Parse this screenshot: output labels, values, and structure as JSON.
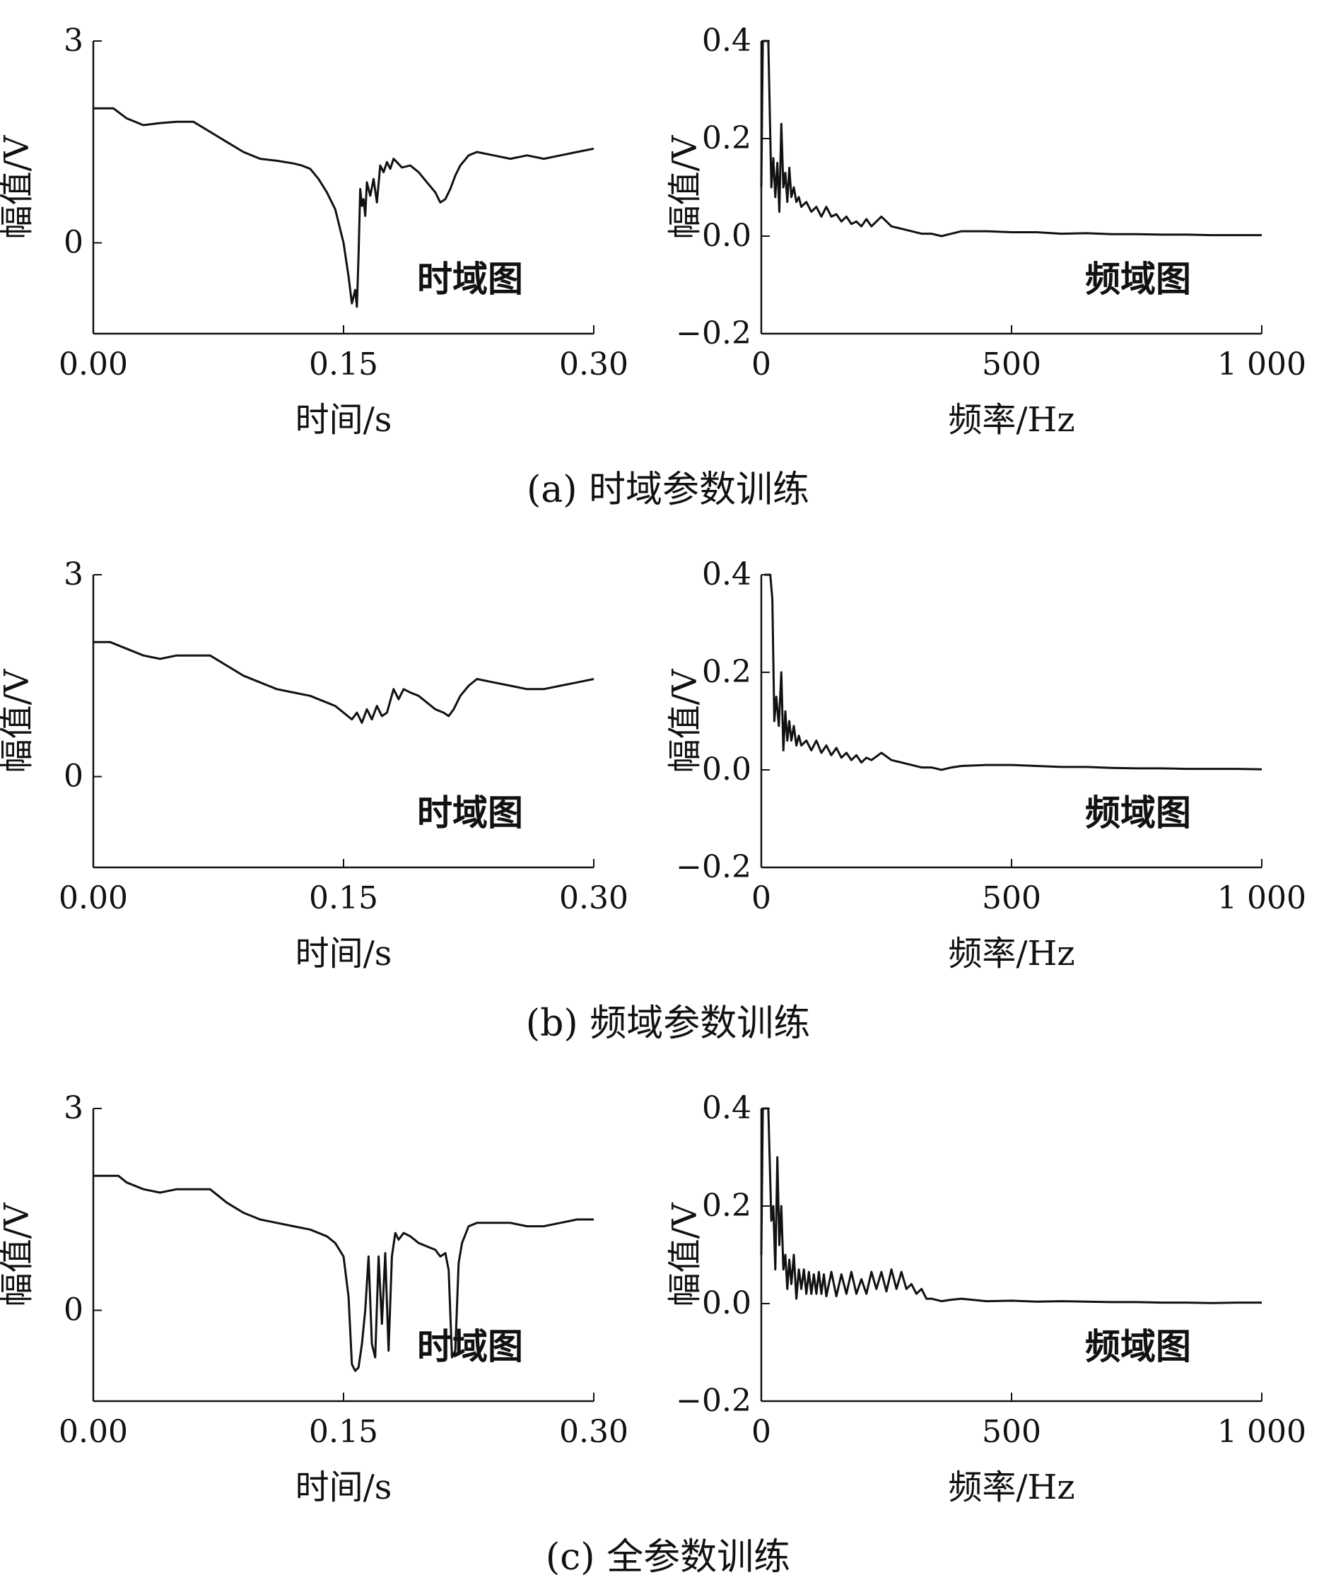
{
  "captions": [
    "(a) 时域参数训练",
    "(b) 频域参数训练",
    "(c) 全参数训练"
  ],
  "chart_data": [
    {
      "type": "line",
      "panel": "a-time",
      "xlabel": "时间/s",
      "ylabel": "幅值/V",
      "inset_label": "时域图",
      "xlim": [
        0,
        0.3
      ],
      "ylim": [
        -1.35,
        3.0
      ],
      "xticks": [
        0,
        0.15,
        0.3
      ],
      "xtick_labels": [
        "0.00",
        "0.15",
        "0.30"
      ],
      "yticks": [
        0,
        3
      ],
      "ytick_labels": [
        "0",
        "3"
      ],
      "series": [
        {
          "x": [
            0.0,
            0.012,
            0.02,
            0.03,
            0.04,
            0.05,
            0.06,
            0.07,
            0.08,
            0.09,
            0.1,
            0.11,
            0.12,
            0.125,
            0.13,
            0.135,
            0.14,
            0.145,
            0.15,
            0.153,
            0.155,
            0.157,
            0.158,
            0.159,
            0.16,
            0.161,
            0.162,
            0.163,
            0.164,
            0.166,
            0.168,
            0.17,
            0.172,
            0.174,
            0.176,
            0.178,
            0.18,
            0.185,
            0.19,
            0.195,
            0.2,
            0.205,
            0.208,
            0.211,
            0.214,
            0.217,
            0.22,
            0.225,
            0.23,
            0.24,
            0.25,
            0.26,
            0.27,
            0.28,
            0.29,
            0.3
          ],
          "y": [
            2.0,
            2.0,
            1.85,
            1.75,
            1.78,
            1.8,
            1.8,
            1.65,
            1.5,
            1.35,
            1.25,
            1.22,
            1.18,
            1.15,
            1.1,
            0.95,
            0.75,
            0.5,
            0.0,
            -0.5,
            -0.9,
            -0.7,
            -0.95,
            -0.2,
            0.8,
            0.55,
            0.65,
            0.4,
            0.9,
            0.7,
            0.95,
            0.6,
            1.15,
            1.05,
            1.2,
            1.1,
            1.25,
            1.12,
            1.15,
            1.05,
            0.9,
            0.75,
            0.6,
            0.65,
            0.8,
            1.0,
            1.15,
            1.3,
            1.35,
            1.3,
            1.25,
            1.3,
            1.25,
            1.3,
            1.35,
            1.4
          ]
        }
      ]
    },
    {
      "type": "line",
      "panel": "a-freq",
      "xlabel": "频率/Hz",
      "ylabel": "幅值/V",
      "inset_label": "频域图",
      "xlim": [
        0,
        1000
      ],
      "ylim": [
        -0.2,
        0.4
      ],
      "xticks": [
        0,
        500,
        1000
      ],
      "xtick_labels": [
        "0",
        "500",
        "1 000"
      ],
      "yticks": [
        -0.2,
        0.0,
        0.2,
        0.4
      ],
      "ytick_labels": [
        "−0.2",
        "0.0",
        "0.2",
        "0.4"
      ],
      "series": [
        {
          "x": [
            0,
            3,
            8,
            14,
            20,
            24,
            28,
            32,
            36,
            40,
            44,
            48,
            52,
            56,
            60,
            65,
            70,
            75,
            80,
            90,
            100,
            110,
            120,
            130,
            140,
            150,
            160,
            170,
            180,
            190,
            200,
            210,
            220,
            240,
            260,
            280,
            300,
            320,
            340,
            360,
            380,
            400,
            450,
            500,
            550,
            600,
            650,
            700,
            750,
            800,
            850,
            900,
            950,
            1000
          ],
          "y": [
            0.1,
            0.4,
            0.4,
            0.4,
            0.1,
            0.16,
            0.08,
            0.15,
            0.05,
            0.23,
            0.1,
            0.13,
            0.07,
            0.14,
            0.08,
            0.1,
            0.07,
            0.08,
            0.06,
            0.07,
            0.05,
            0.06,
            0.04,
            0.06,
            0.04,
            0.045,
            0.03,
            0.04,
            0.025,
            0.03,
            0.02,
            0.035,
            0.02,
            0.04,
            0.02,
            0.015,
            0.01,
            0.005,
            0.005,
            0.0,
            0.005,
            0.01,
            0.01,
            0.008,
            0.008,
            0.005,
            0.006,
            0.004,
            0.004,
            0.003,
            0.003,
            0.002,
            0.002,
            0.002
          ]
        }
      ]
    },
    {
      "type": "line",
      "panel": "b-time",
      "xlabel": "时间/s",
      "ylabel": "幅值/V",
      "inset_label": "时域图",
      "xlim": [
        0,
        0.3
      ],
      "ylim": [
        -1.35,
        3.0
      ],
      "xticks": [
        0,
        0.15,
        0.3
      ],
      "xtick_labels": [
        "0.00",
        "0.15",
        "0.30"
      ],
      "yticks": [
        0,
        3
      ],
      "ytick_labels": [
        "0",
        "3"
      ],
      "series": [
        {
          "x": [
            0.0,
            0.01,
            0.02,
            0.03,
            0.04,
            0.05,
            0.06,
            0.07,
            0.08,
            0.09,
            0.1,
            0.11,
            0.12,
            0.13,
            0.14,
            0.145,
            0.15,
            0.155,
            0.158,
            0.161,
            0.164,
            0.167,
            0.17,
            0.173,
            0.176,
            0.18,
            0.183,
            0.186,
            0.19,
            0.195,
            0.2,
            0.205,
            0.21,
            0.213,
            0.216,
            0.22,
            0.225,
            0.23,
            0.24,
            0.25,
            0.26,
            0.27,
            0.28,
            0.29,
            0.3
          ],
          "y": [
            2.0,
            2.0,
            1.9,
            1.8,
            1.75,
            1.8,
            1.8,
            1.8,
            1.65,
            1.5,
            1.4,
            1.3,
            1.25,
            1.2,
            1.1,
            1.05,
            0.95,
            0.85,
            0.95,
            0.8,
            1.0,
            0.85,
            1.05,
            0.9,
            0.95,
            1.3,
            1.15,
            1.3,
            1.25,
            1.2,
            1.1,
            1.0,
            0.95,
            0.9,
            1.0,
            1.2,
            1.35,
            1.45,
            1.4,
            1.35,
            1.3,
            1.3,
            1.35,
            1.4,
            1.45
          ]
        }
      ]
    },
    {
      "type": "line",
      "panel": "b-freq",
      "xlabel": "频率/Hz",
      "ylabel": "幅值/V",
      "inset_label": "频域图",
      "xlim": [
        0,
        1000
      ],
      "ylim": [
        -0.2,
        0.4
      ],
      "xticks": [
        0,
        500,
        1000
      ],
      "xtick_labels": [
        "0",
        "500",
        "1 000"
      ],
      "yticks": [
        -0.2,
        0.0,
        0.2,
        0.4
      ],
      "ytick_labels": [
        "−0.2",
        "0.0",
        "0.2",
        "0.4"
      ],
      "series": [
        {
          "x": [
            6,
            10,
            18,
            22,
            26,
            30,
            35,
            40,
            44,
            48,
            52,
            56,
            60,
            65,
            70,
            75,
            80,
            90,
            100,
            110,
            120,
            130,
            140,
            150,
            160,
            170,
            180,
            190,
            200,
            210,
            220,
            240,
            260,
            280,
            300,
            320,
            340,
            360,
            380,
            400,
            450,
            500,
            550,
            600,
            650,
            700,
            750,
            800,
            850,
            900,
            950,
            1000
          ],
          "y": [
            0.4,
            0.4,
            0.4,
            0.35,
            0.1,
            0.15,
            0.09,
            0.2,
            0.04,
            0.12,
            0.06,
            0.1,
            0.06,
            0.09,
            0.05,
            0.07,
            0.05,
            0.06,
            0.04,
            0.06,
            0.035,
            0.05,
            0.03,
            0.045,
            0.025,
            0.035,
            0.02,
            0.03,
            0.015,
            0.025,
            0.02,
            0.035,
            0.02,
            0.015,
            0.01,
            0.005,
            0.005,
            0.0,
            0.005,
            0.008,
            0.01,
            0.01,
            0.008,
            0.006,
            0.006,
            0.004,
            0.003,
            0.003,
            0.002,
            0.002,
            0.002,
            0.001
          ]
        }
      ]
    },
    {
      "type": "line",
      "panel": "c-time",
      "xlabel": "时间/s",
      "ylabel": "幅值/V",
      "inset_label": "时域图",
      "xlim": [
        0,
        0.3
      ],
      "ylim": [
        -1.35,
        3.0
      ],
      "xticks": [
        0,
        0.15,
        0.3
      ],
      "xtick_labels": [
        "0.00",
        "0.15",
        "0.30"
      ],
      "yticks": [
        0,
        3
      ],
      "ytick_labels": [
        "0",
        "3"
      ],
      "series": [
        {
          "x": [
            0.0,
            0.015,
            0.02,
            0.03,
            0.04,
            0.05,
            0.06,
            0.07,
            0.08,
            0.09,
            0.1,
            0.11,
            0.12,
            0.13,
            0.14,
            0.145,
            0.15,
            0.153,
            0.155,
            0.157,
            0.159,
            0.161,
            0.163,
            0.165,
            0.167,
            0.169,
            0.171,
            0.173,
            0.175,
            0.177,
            0.179,
            0.181,
            0.183,
            0.186,
            0.19,
            0.195,
            0.2,
            0.205,
            0.208,
            0.211,
            0.213,
            0.215,
            0.217,
            0.219,
            0.221,
            0.225,
            0.23,
            0.24,
            0.25,
            0.26,
            0.27,
            0.28,
            0.29,
            0.3
          ],
          "y": [
            2.0,
            2.0,
            1.9,
            1.8,
            1.75,
            1.8,
            1.8,
            1.8,
            1.6,
            1.45,
            1.35,
            1.3,
            1.25,
            1.2,
            1.1,
            1.0,
            0.8,
            0.2,
            -0.8,
            -0.9,
            -0.85,
            -0.5,
            0.0,
            0.8,
            -0.5,
            -0.7,
            0.8,
            -0.2,
            0.85,
            -0.6,
            0.8,
            1.15,
            1.05,
            1.15,
            1.1,
            1.0,
            0.95,
            0.9,
            0.8,
            0.85,
            0.6,
            -0.7,
            -0.6,
            0.7,
            1.0,
            1.25,
            1.3,
            1.3,
            1.3,
            1.25,
            1.25,
            1.3,
            1.35,
            1.35
          ]
        }
      ]
    },
    {
      "type": "line",
      "panel": "c-freq",
      "xlabel": "频率/Hz",
      "ylabel": "幅值/V",
      "inset_label": "频域图",
      "xlim": [
        0,
        1000
      ],
      "ylim": [
        -0.2,
        0.4
      ],
      "xticks": [
        0,
        500,
        1000
      ],
      "xtick_labels": [
        "0",
        "500",
        "1 000"
      ],
      "yticks": [
        -0.2,
        0.0,
        0.2,
        0.4
      ],
      "ytick_labels": [
        "−0.2",
        "0.0",
        "0.2",
        "0.4"
      ],
      "series": [
        {
          "x": [
            0,
            3,
            8,
            14,
            20,
            24,
            28,
            32,
            36,
            40,
            44,
            48,
            52,
            56,
            60,
            65,
            70,
            75,
            80,
            85,
            90,
            95,
            100,
            105,
            110,
            115,
            120,
            125,
            130,
            140,
            150,
            160,
            170,
            180,
            190,
            200,
            210,
            220,
            230,
            240,
            250,
            260,
            270,
            280,
            290,
            300,
            310,
            320,
            330,
            340,
            360,
            380,
            400,
            450,
            500,
            550,
            600,
            650,
            700,
            750,
            800,
            850,
            900,
            950,
            1000
          ],
          "y": [
            0.1,
            0.4,
            0.4,
            0.4,
            0.17,
            0.2,
            0.07,
            0.3,
            0.12,
            0.2,
            0.07,
            0.1,
            0.03,
            0.09,
            0.04,
            0.1,
            0.01,
            0.07,
            0.03,
            0.07,
            0.02,
            0.065,
            0.02,
            0.06,
            0.02,
            0.065,
            0.02,
            0.06,
            0.015,
            0.065,
            0.015,
            0.06,
            0.02,
            0.065,
            0.02,
            0.05,
            0.02,
            0.065,
            0.03,
            0.065,
            0.025,
            0.07,
            0.03,
            0.065,
            0.03,
            0.04,
            0.02,
            0.03,
            0.01,
            0.01,
            0.005,
            0.008,
            0.01,
            0.005,
            0.006,
            0.004,
            0.005,
            0.004,
            0.003,
            0.003,
            0.002,
            0.002,
            0.001,
            0.002,
            0.002
          ]
        }
      ]
    }
  ]
}
